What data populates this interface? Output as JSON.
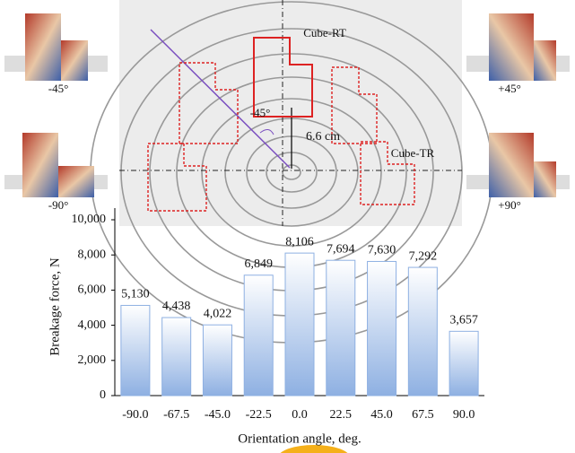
{
  "chart_data": {
    "type": "bar",
    "y_label": "Breakage force, N",
    "x_label": "Orientation angle, deg.",
    "categories": [
      "-90.0",
      "-67.5",
      "-45.0",
      "-22.5",
      "0.0",
      "22.5",
      "45.0",
      "67.5",
      "90.0"
    ],
    "values": [
      5130,
      4438,
      4022,
      6849,
      8106,
      7694,
      7630,
      7292,
      3657
    ],
    "value_labels": [
      "5,130",
      "4,438",
      "4,022",
      "6,849",
      "8,106",
      "7,694",
      "7,630",
      "7,292",
      "3,657"
    ],
    "color": "#8eb0e2",
    "ylim": [
      0,
      10000
    ],
    "yticks": [
      0,
      {
        "value": 2000,
        "label": "2,000"
      },
      {
        "value": 4000,
        "label": "4,000"
      },
      {
        "value": 6000,
        "label": "6,000"
      },
      {
        "value": 8000,
        "label": "8,000"
      },
      {
        "value": 10000,
        "label": "10,000"
      }
    ],
    "annotations": [
      "Cube-RT",
      "-45°",
      "6.6 cm",
      "Cube-TR",
      "-45°",
      "+45°",
      "-90°",
      "+90°"
    ]
  }
}
